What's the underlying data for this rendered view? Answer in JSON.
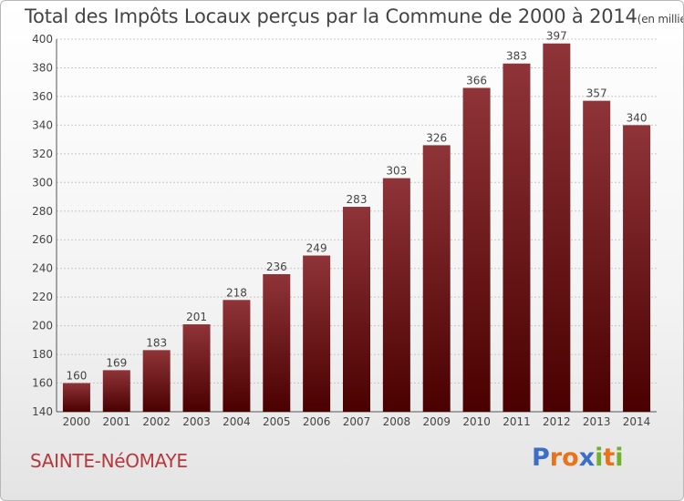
{
  "chart_data": {
    "type": "bar",
    "title": "Total des Impôts Locaux perçus par la Commune de 2000 à 2014",
    "unit_label": "(en milliers d'€)",
    "categories": [
      "2000",
      "2001",
      "2002",
      "2003",
      "2004",
      "2005",
      "2006",
      "2007",
      "2008",
      "2009",
      "2010",
      "2011",
      "2012",
      "2013",
      "2014"
    ],
    "values": [
      160,
      169,
      183,
      201,
      218,
      236,
      249,
      283,
      303,
      326,
      366,
      383,
      397,
      357,
      340
    ],
    "ylim": [
      140,
      400
    ],
    "yticks": [
      140,
      160,
      180,
      200,
      220,
      240,
      260,
      280,
      300,
      320,
      340,
      360,
      380,
      400
    ],
    "xlabel": "",
    "ylabel": "",
    "grid": true,
    "colors": {
      "bar_top": "#8f3438",
      "bar_bottom": "#4a0000",
      "grid": "#c8c8c8",
      "text": "#444444"
    }
  },
  "footer": {
    "commune": "SAINTE-NéOMAYE",
    "logo_letters": [
      "P",
      "r",
      "o",
      "x",
      "i",
      "t",
      "i"
    ],
    "logo_colors": [
      "#3a6fc4",
      "#e8731b",
      "#e8731b",
      "#3a6fc4",
      "#6fb02c",
      "#e8731b",
      "#6fb02c"
    ]
  }
}
